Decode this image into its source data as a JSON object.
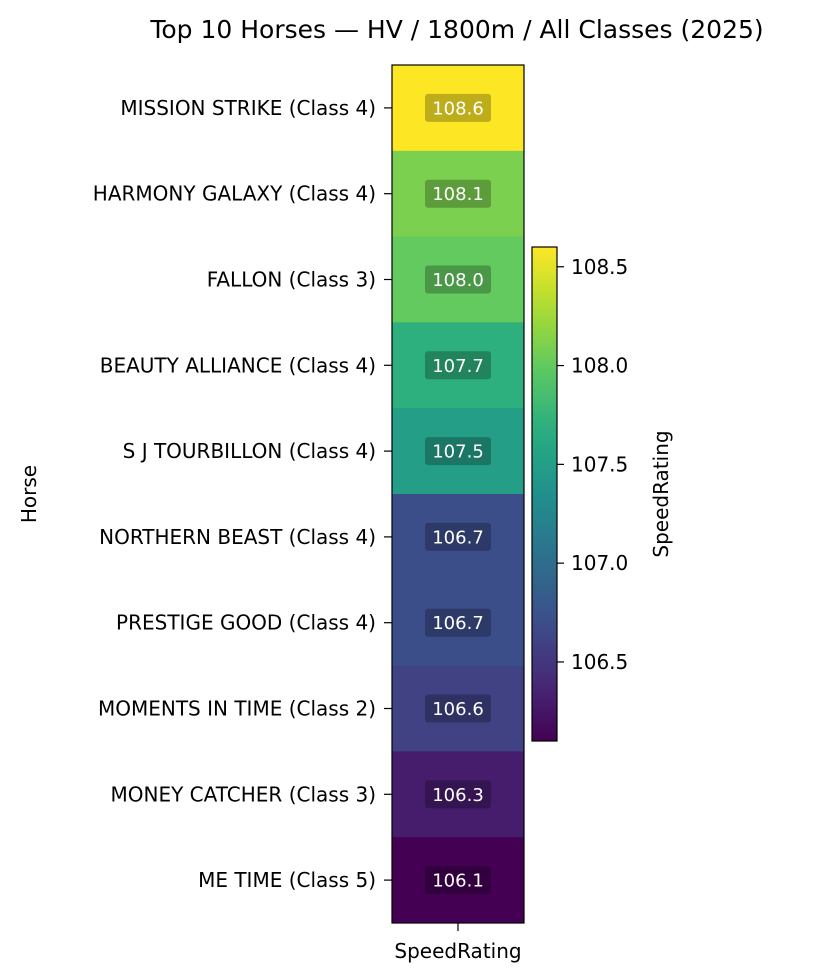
{
  "chart_data": {
    "type": "heatmap",
    "title": "Top 10 Horses — HV / 1800m / All Classes (2025)",
    "ylabel": "Horse",
    "columns": [
      "SpeedRating"
    ],
    "rows": [
      {
        "label": "MISSION STRIKE (Class 4)",
        "value": 108.6,
        "value_label": "108.6"
      },
      {
        "label": "HARMONY GALAXY (Class 4)",
        "value": 108.1,
        "value_label": "108.1"
      },
      {
        "label": "FALLON (Class 3)",
        "value": 108.0,
        "value_label": "108.0"
      },
      {
        "label": "BEAUTY ALLIANCE (Class 4)",
        "value": 107.7,
        "value_label": "107.7"
      },
      {
        "label": "S J TOURBILLON (Class 4)",
        "value": 107.5,
        "value_label": "107.5"
      },
      {
        "label": "NORTHERN BEAST (Class 4)",
        "value": 106.7,
        "value_label": "106.7"
      },
      {
        "label": "PRESTIGE GOOD (Class 4)",
        "value": 106.7,
        "value_label": "106.7"
      },
      {
        "label": "MOMENTS IN TIME (Class 2)",
        "value": 106.6,
        "value_label": "106.6"
      },
      {
        "label": "MONEY CATCHER (Class 3)",
        "value": 106.3,
        "value_label": "106.3"
      },
      {
        "label": "ME TIME (Class 5)",
        "value": 106.1,
        "value_label": "106.1"
      }
    ],
    "colorbar": {
      "label": "SpeedRating",
      "colormap": "viridis",
      "range": [
        106.1,
        108.6
      ],
      "ticks": [
        106.5,
        107.0,
        107.5,
        108.0,
        108.5
      ],
      "tick_labels": [
        "106.5",
        "107.0",
        "107.5",
        "108.0",
        "108.5"
      ]
    },
    "legend": "none",
    "grid": false
  }
}
